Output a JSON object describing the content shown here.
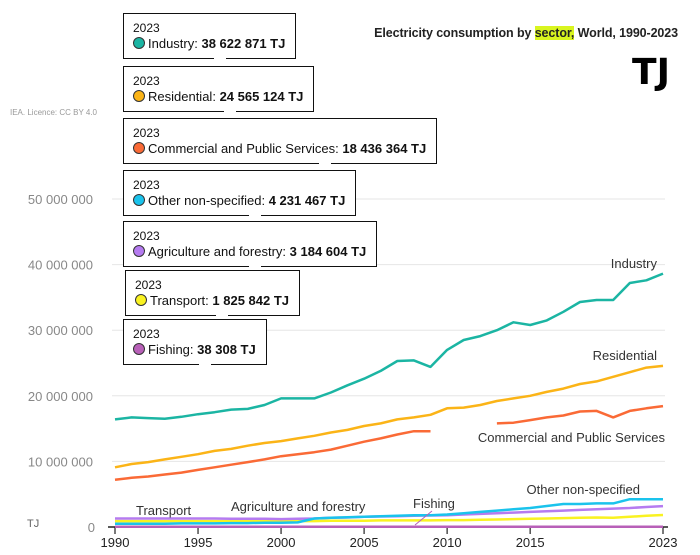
{
  "header": {
    "title_pre": "Electricity consumption by ",
    "title_highlight": "sector,",
    "title_post": " World, 1990-2023",
    "unit_big": "TJ",
    "licence": "IEA. Licence: CC BY 4.0"
  },
  "tooltips": [
    {
      "year": "2023",
      "name": "Industry",
      "value": "38 622 871 TJ",
      "color": "#1bb5a3"
    },
    {
      "year": "2023",
      "name": "Residential",
      "value": "24 565 124 TJ",
      "color": "#fbb417"
    },
    {
      "year": "2023",
      "name": "Commercial and Public Services",
      "value": "18 436 364 TJ",
      "color": "#fa6a36"
    },
    {
      "year": "2023",
      "name": "Other non-specified",
      "value": "4 231 467 TJ",
      "color": "#1ac3ec"
    },
    {
      "year": "2023",
      "name": "Agriculture and forestry",
      "value": "3 184 604 TJ",
      "color": "#b57bf0"
    },
    {
      "year": "2023",
      "name": "Transport",
      "value": "1 825 842 TJ",
      "color": "#f9f221"
    },
    {
      "year": "2023",
      "name": "Fishing",
      "value": "38 308 TJ",
      "color": "#b860b8"
    }
  ],
  "chart_data": {
    "type": "line",
    "title": "Electricity consumption by sector, World, 1990-2023",
    "xlabel": "",
    "ylabel": "TJ",
    "xlim": [
      1990,
      2023
    ],
    "ylim": [
      0,
      55000000
    ],
    "grid": true,
    "x_ticks": [
      1990,
      1995,
      2000,
      2005,
      2010,
      2015,
      2023
    ],
    "y_ticks": [
      {
        "value": 0,
        "label": "0"
      },
      {
        "value": 10000000,
        "label": "10 000 000"
      },
      {
        "value": 20000000,
        "label": "20 000 000"
      },
      {
        "value": 30000000,
        "label": "30 000 000"
      },
      {
        "value": 40000000,
        "label": "40 000 000"
      },
      {
        "value": 50000000,
        "label": "50 000 000"
      }
    ],
    "y_unit_label": "TJ",
    "x": [
      1990,
      1991,
      1992,
      1993,
      1994,
      1995,
      1996,
      1997,
      1998,
      1999,
      2000,
      2001,
      2002,
      2003,
      2004,
      2005,
      2006,
      2007,
      2008,
      2009,
      2010,
      2011,
      2012,
      2013,
      2014,
      2015,
      2016,
      2017,
      2018,
      2019,
      2020,
      2021,
      2022,
      2023
    ],
    "series": [
      {
        "name": "Industry",
        "color": "#1bb5a3",
        "values": [
          16400000,
          16700000,
          16600000,
          16500000,
          16800000,
          17200000,
          17500000,
          17900000,
          18000000,
          18600000,
          19600000,
          19600000,
          19600000,
          20500000,
          21600000,
          22600000,
          23800000,
          25300000,
          25400000,
          24400000,
          27000000,
          28500000,
          29100000,
          30000000,
          31200000,
          30800000,
          31500000,
          32800000,
          34300000,
          34600000,
          34600000,
          37200000,
          37600000,
          38622871
        ]
      },
      {
        "name": "Residential",
        "color": "#fbb417",
        "values": [
          9100000,
          9600000,
          9900000,
          10300000,
          10700000,
          11100000,
          11600000,
          11900000,
          12400000,
          12800000,
          13100000,
          13500000,
          13900000,
          14400000,
          14800000,
          15400000,
          15800000,
          16400000,
          16700000,
          17100000,
          18100000,
          18200000,
          18600000,
          19200000,
          19600000,
          20000000,
          20600000,
          21100000,
          21800000,
          22200000,
          22900000,
          23600000,
          24300000,
          24565124
        ]
      },
      {
        "name": "Commercial and Public Services",
        "color": "#fa6a36",
        "values": [
          7200000,
          7500000,
          7700000,
          8000000,
          8300000,
          8700000,
          9100000,
          9500000,
          9900000,
          10300000,
          10800000,
          11100000,
          11400000,
          11800000,
          12400000,
          13000000,
          13500000,
          14100000,
          14600000,
          14600000,
          null,
          null,
          null,
          15800000,
          15900000,
          16300000,
          16700000,
          17000000,
          17600000,
          17700000,
          16700000,
          17700000,
          18100000,
          18436364
        ]
      },
      {
        "name": "Other non-specified",
        "color": "#1ac3ec",
        "values": [
          500000,
          500000,
          500000,
          500000,
          550000,
          550000,
          550000,
          600000,
          600000,
          650000,
          650000,
          700000,
          1300000,
          1400000,
          1500000,
          1550000,
          1650000,
          1700000,
          1800000,
          1800000,
          1900000,
          2100000,
          2300000,
          2500000,
          2700000,
          2900000,
          3200000,
          3500000,
          3500000,
          3600000,
          3600000,
          4231467,
          4230000,
          4231467
        ]
      },
      {
        "name": "Agriculture and forestry",
        "color": "#b57bf0",
        "values": [
          1300000,
          1300000,
          1300000,
          1300000,
          1300000,
          1300000,
          1300000,
          1250000,
          1250000,
          1250000,
          1200000,
          1250000,
          1300000,
          1400000,
          1450000,
          1550000,
          1600000,
          1650000,
          1700000,
          1750000,
          1800000,
          1900000,
          2000000,
          2100000,
          2200000,
          2300000,
          2400000,
          2500000,
          2600000,
          2700000,
          2800000,
          2900000,
          3050000,
          3184604
        ]
      },
      {
        "name": "Transport",
        "color": "#f9f221",
        "values": [
          900000,
          900000,
          900000,
          900000,
          900000,
          900000,
          900000,
          900000,
          900000,
          900000,
          900000,
          900000,
          900000,
          950000,
          950000,
          950000,
          1000000,
          1000000,
          1000000,
          1000000,
          1050000,
          1050000,
          1100000,
          1150000,
          1200000,
          1250000,
          1300000,
          1350000,
          1400000,
          1450000,
          1400000,
          1550000,
          1700000,
          1825842
        ]
      },
      {
        "name": "Fishing",
        "color": "#b860b8",
        "values": [
          30000,
          30000,
          30000,
          30000,
          30000,
          30000,
          30000,
          30000,
          30000,
          30000,
          30000,
          30000,
          30000,
          30000,
          30000,
          30000,
          30000,
          30000,
          30000,
          30000,
          30000,
          30000,
          30000,
          30000,
          30000,
          30000,
          30000,
          35000,
          35000,
          35000,
          35000,
          36000,
          37000,
          38308
        ]
      }
    ],
    "inline_labels": [
      "Industry",
      "Residential",
      "Commercial and Public Services",
      "Other non-specified",
      "Agriculture and forestry",
      "Transport",
      "Fishing"
    ]
  }
}
